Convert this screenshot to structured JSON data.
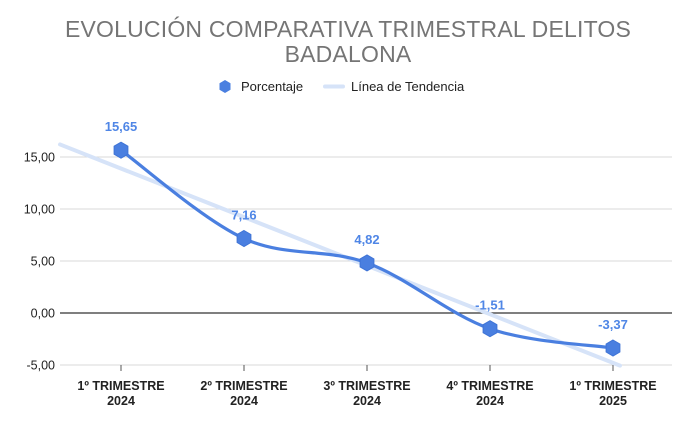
{
  "chart_data": {
    "type": "line",
    "title_lines": [
      "EVOLUCIÓN COMPARATIVA TRIMESTRAL  DELITOS",
      "BADALONA"
    ],
    "categories": [
      [
        "1º TRIMESTRE",
        "2024"
      ],
      [
        "2º TRIMESTRE",
        "2024"
      ],
      [
        "3º TRIMESTRE",
        "2024"
      ],
      [
        "4º TRIMESTRE",
        "2024"
      ],
      [
        "1º TRIMESTRE",
        "2025"
      ]
    ],
    "series": [
      {
        "name": "Porcentaje",
        "values": [
          15.65,
          7.16,
          4.82,
          -1.51,
          -3.37
        ],
        "labels": [
          "15,65",
          "7,16",
          "4,82",
          "-1,51",
          "-3,37"
        ],
        "color": "#4a7fe0"
      }
    ],
    "trendline": {
      "name": "Línea de Tendencia",
      "color": "#d6e3f8"
    },
    "y_ticks": [
      {
        "value": 15,
        "label": "15,00"
      },
      {
        "value": 10,
        "label": "10,00"
      },
      {
        "value": 5,
        "label": "5,00"
      },
      {
        "value": 0,
        "label": "0,00"
      },
      {
        "value": -5,
        "label": "-5,00"
      }
    ],
    "ylim": [
      -5,
      15
    ],
    "grid": true,
    "legend_position": "top-center"
  }
}
